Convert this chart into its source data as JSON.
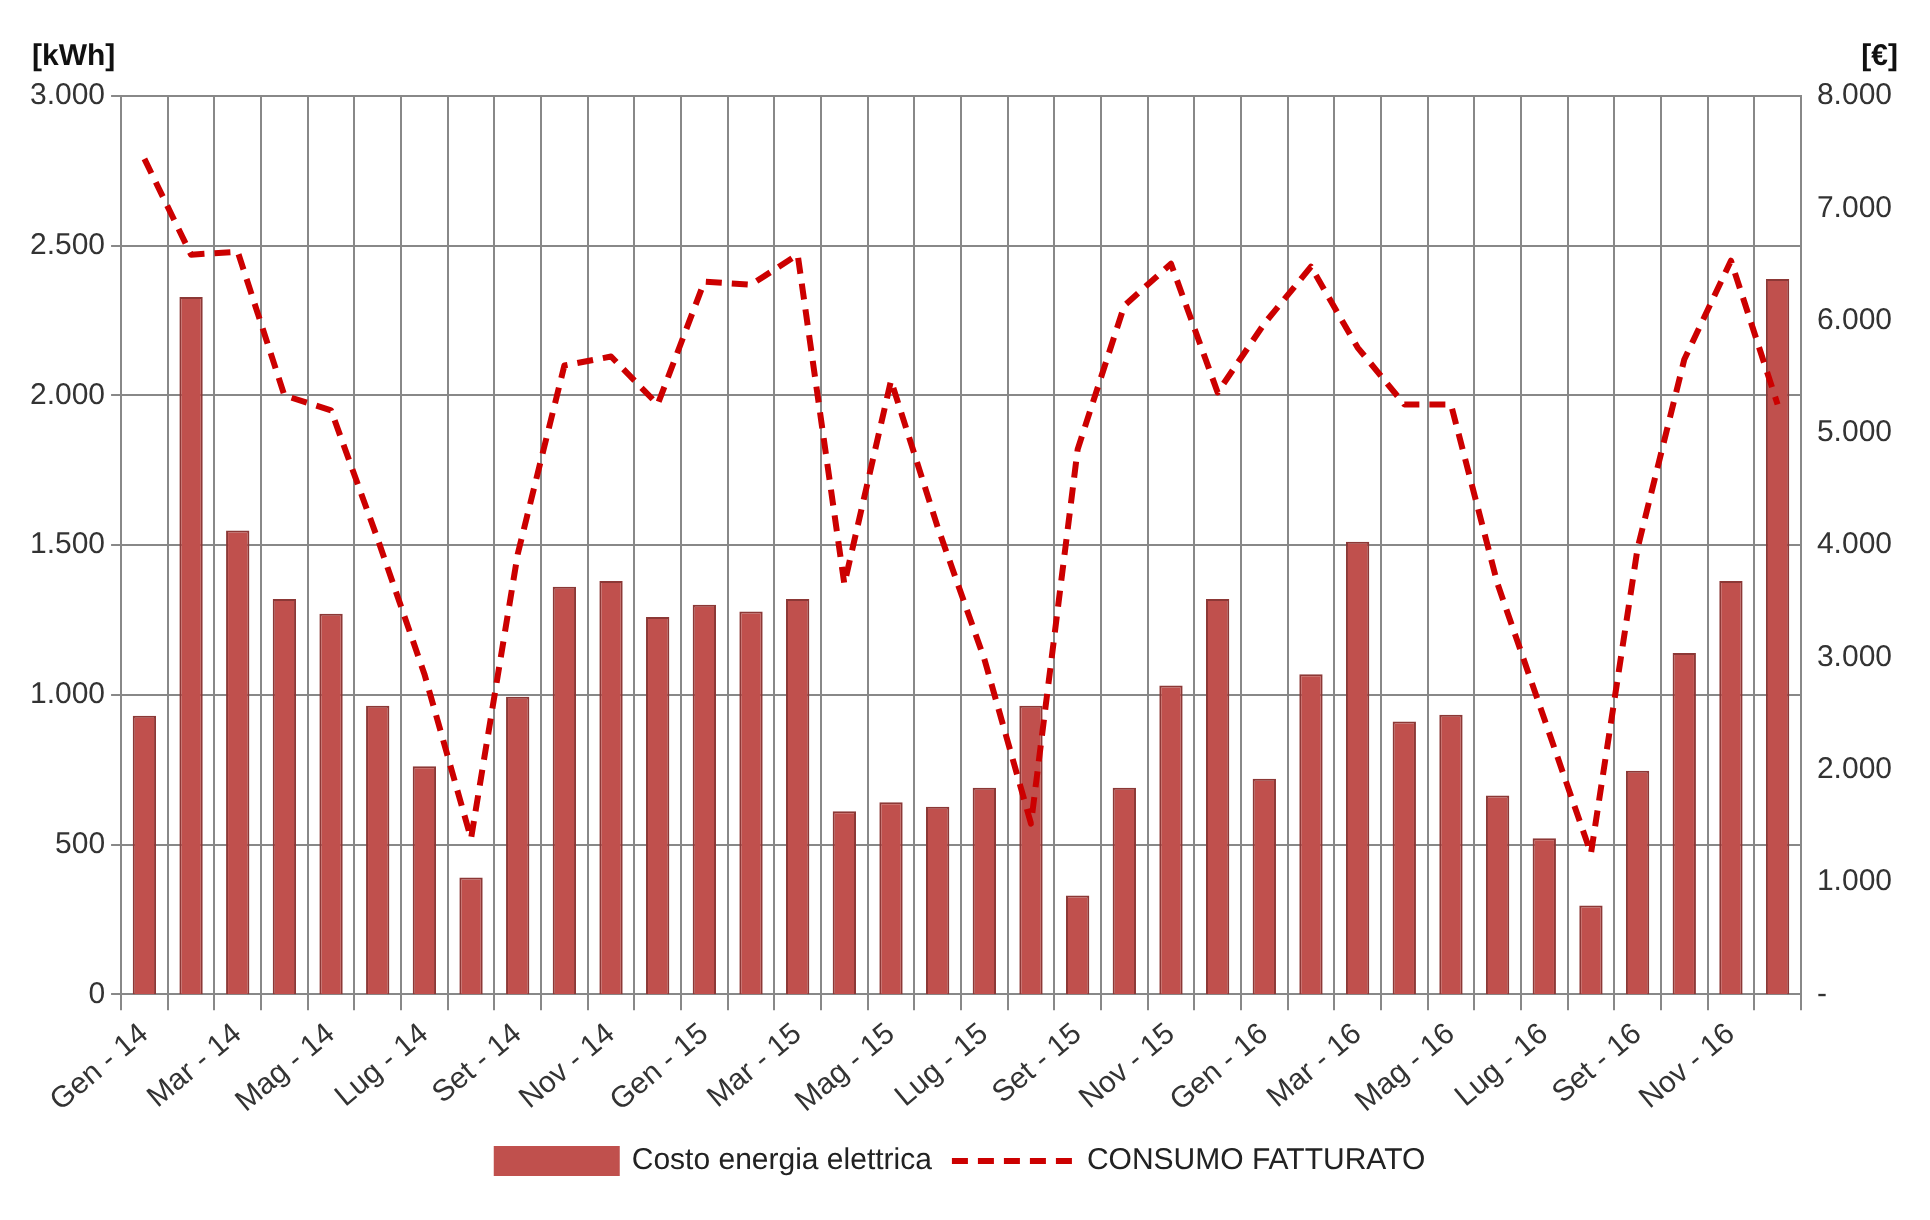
{
  "chart_data": {
    "type": "bar",
    "ylabel": "[kWh]",
    "y2label": "[€]",
    "categories": [
      "Gen - 14",
      null,
      "Mar - 14",
      null,
      "Mag - 14",
      null,
      "Lug - 14",
      null,
      "Set - 14",
      null,
      "Nov - 14",
      null,
      "Gen - 15",
      null,
      "Mar - 15",
      null,
      "Mag - 15",
      null,
      "Lug - 15",
      null,
      "Set - 15",
      null,
      "Nov - 15",
      null,
      "Gen - 16",
      null,
      "Mar - 16",
      null,
      "Mag - 16",
      null,
      "Lug - 16",
      null,
      "Set - 16",
      null,
      "Nov - 16",
      null
    ],
    "series": [
      {
        "name": "Costo energia elettrica",
        "axis": "y2",
        "color": "#c0504d",
        "values": [
          2480,
          6210,
          4130,
          3520,
          3390,
          2570,
          2030,
          1040,
          2650,
          3630,
          3680,
          3360,
          3470,
          3410,
          3520,
          1630,
          1710,
          1670,
          1840,
          2570,
          880,
          1840,
          2750,
          3520,
          1920,
          2850,
          4030,
          2430,
          2490,
          1770,
          1390,
          790,
          1990,
          3040,
          3680,
          6370
        ]
      },
      {
        "name": "CONSUMO FATTURATO",
        "type": "line",
        "axis": "y",
        "color": "#cc0000",
        "line_style": "dashed",
        "marker": "none",
        "values": [
          2790,
          2470,
          2480,
          2000,
          1950,
          1520,
          1070,
          520,
          1470,
          2100,
          2130,
          1970,
          2380,
          2370,
          2470,
          1370,
          2050,
          1560,
          1120,
          570,
          1820,
          2300,
          2440,
          2010,
          2240,
          2430,
          2160,
          1970,
          1970,
          1370,
          920,
          470,
          1490,
          2120,
          2450,
          1970
        ]
      }
    ],
    "ylim": [
      0,
      3000
    ],
    "yticks": [
      0,
      {
        "value": 500,
        "label": "500"
      },
      {
        "value": 1000,
        "label": "1.000"
      },
      {
        "value": 1500,
        "label": "1.500"
      },
      {
        "value": 2000,
        "label": "2.000"
      },
      {
        "value": 2500,
        "label": "2.500"
      },
      {
        "value": 3000,
        "label": "3.000"
      }
    ],
    "y2lim": [
      0,
      8000
    ],
    "y2ticks": [
      {
        "value": 0,
        "label": "-"
      },
      {
        "value": 1000,
        "label": "1.000"
      },
      {
        "value": 2000,
        "label": "2.000"
      },
      {
        "value": 3000,
        "label": "3.000"
      },
      {
        "value": 4000,
        "label": "4.000"
      },
      {
        "value": 5000,
        "label": "5.000"
      },
      {
        "value": 6000,
        "label": "6.000"
      },
      {
        "value": 7000,
        "label": "7.000"
      },
      {
        "value": 8000,
        "label": "8.000"
      }
    ],
    "grid": true,
    "legend": "bottom"
  }
}
